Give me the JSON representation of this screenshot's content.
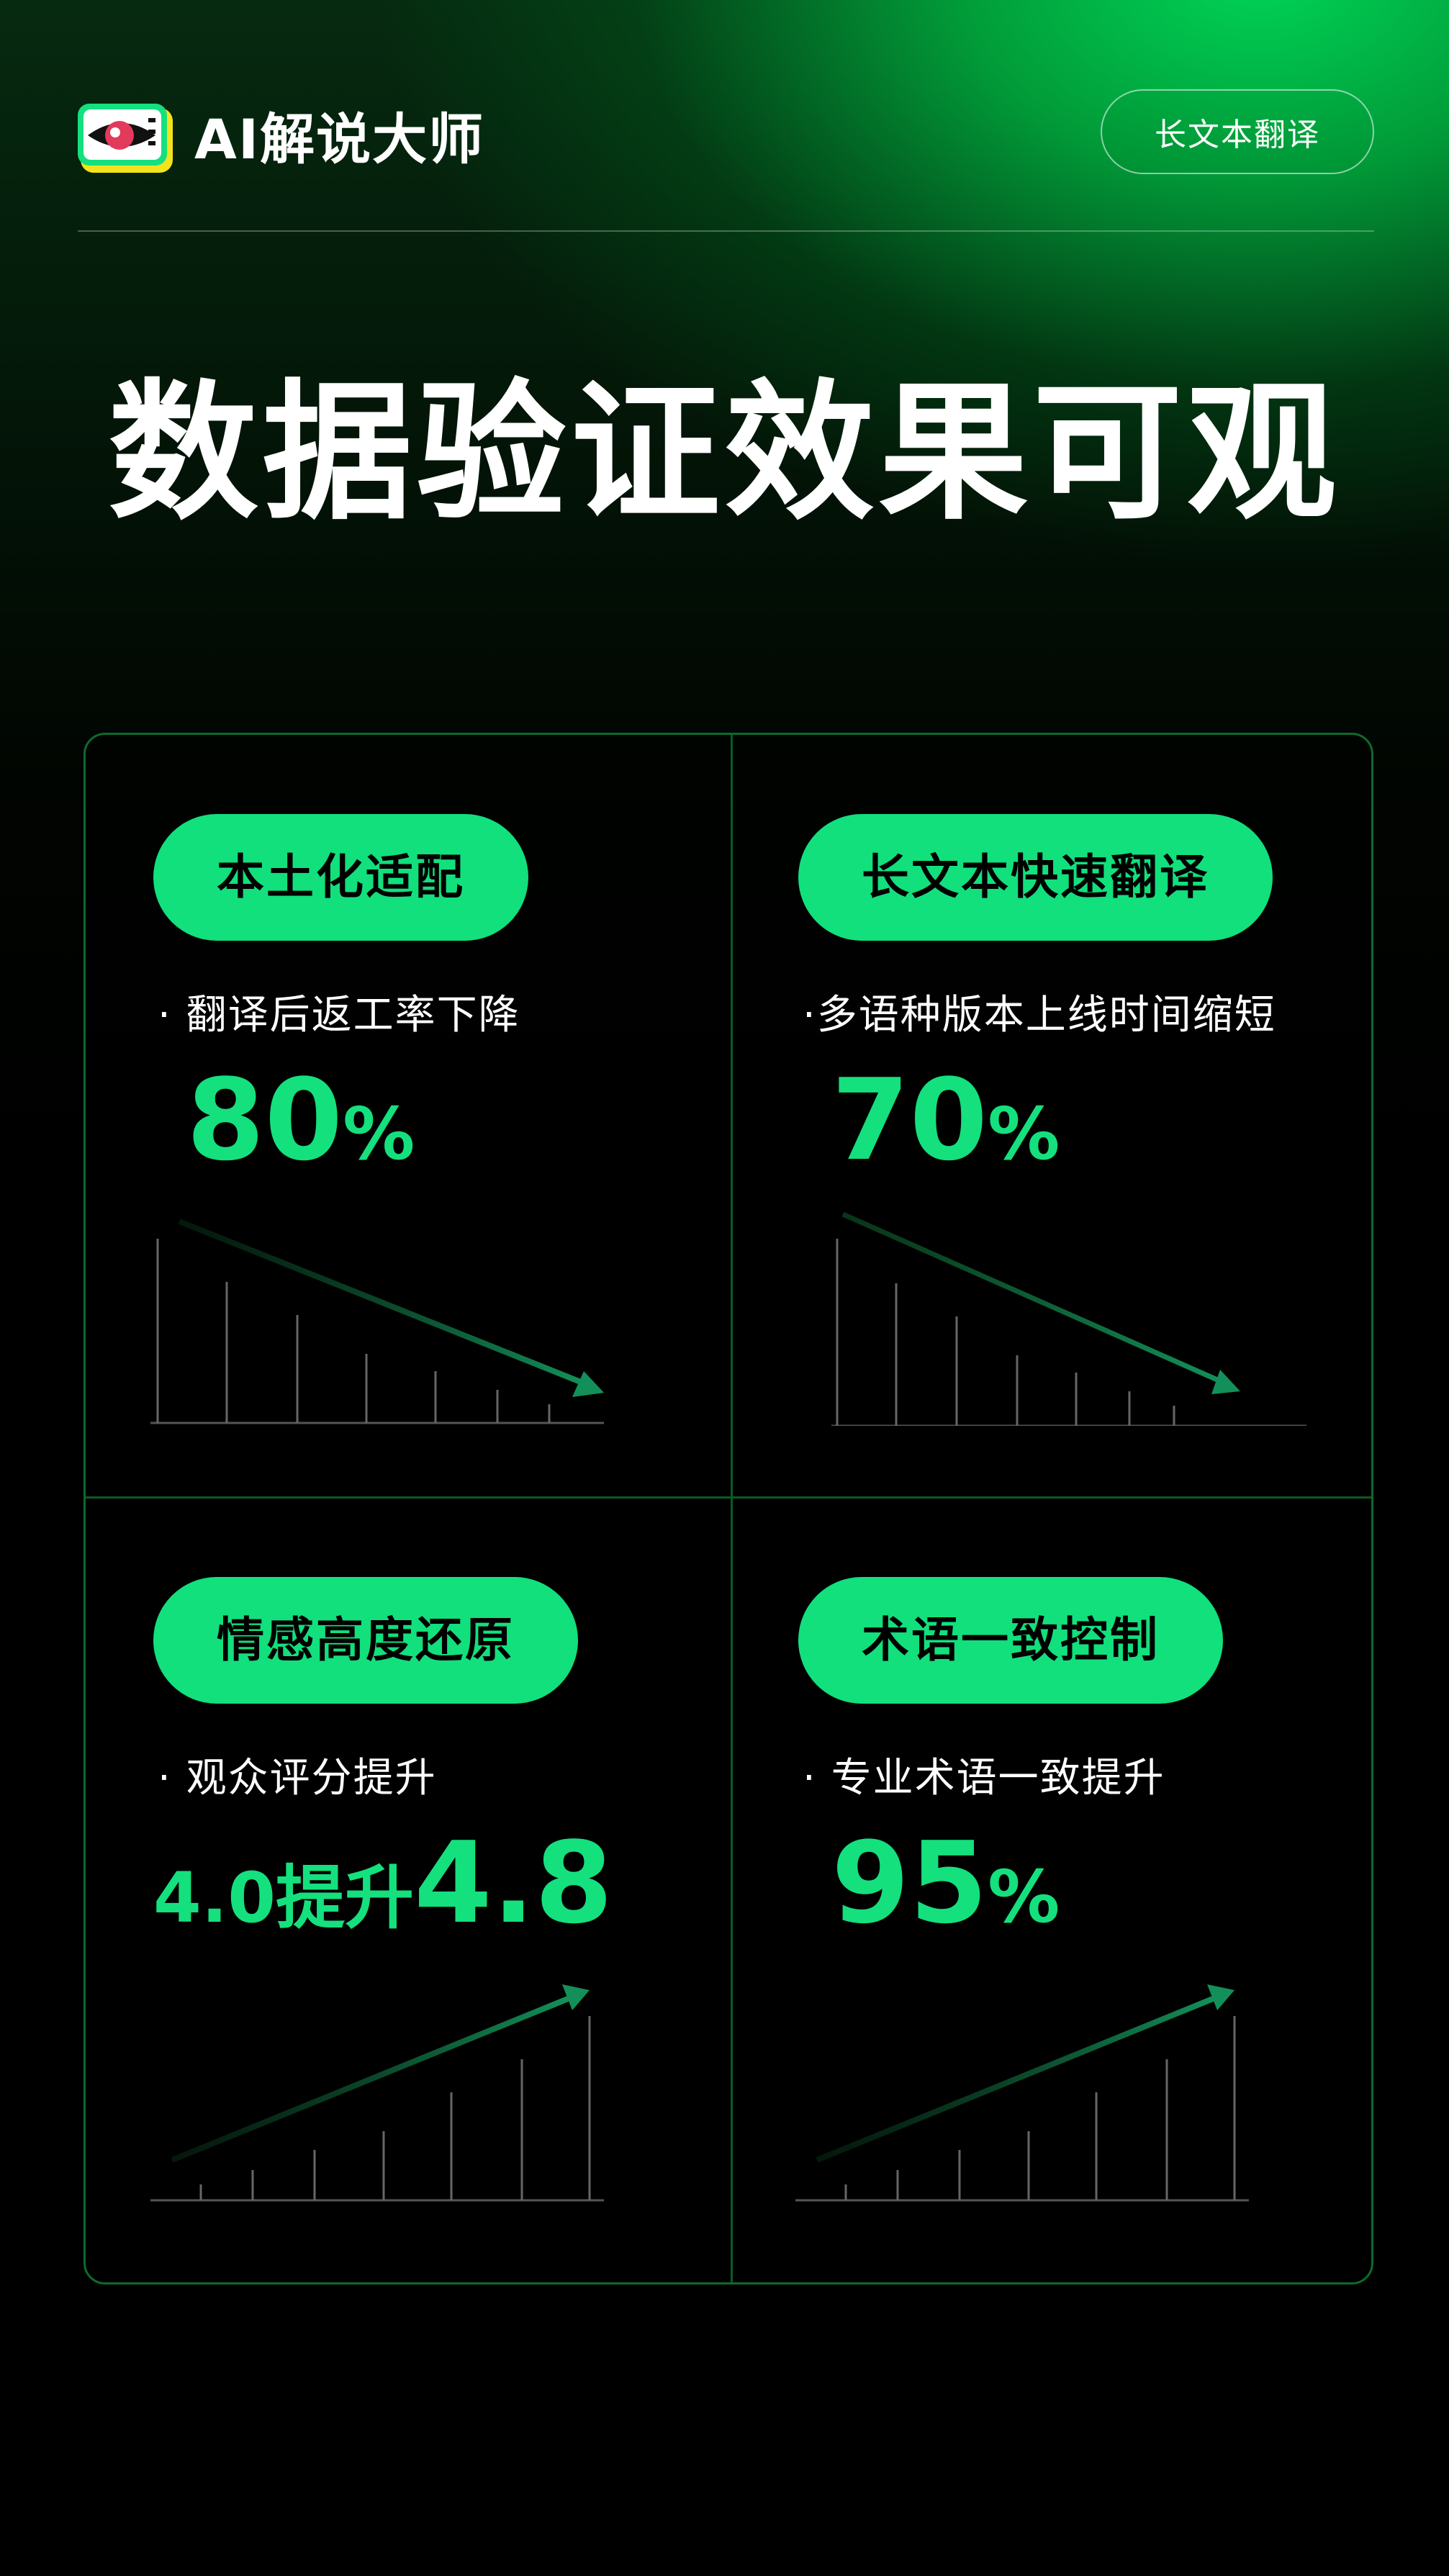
{
  "header": {
    "logo_text": "AI解说大师",
    "logo_icon": "clapperboard-eye-icon",
    "top_button": "长文本翻译"
  },
  "title": "数据验证效果可观",
  "colors": {
    "accent": "#11e07d",
    "border": "#0d6a2c",
    "background": "#000000"
  },
  "cards": [
    {
      "label": "本土化适配",
      "desc": "· 翻译后返工率下降",
      "value": "80",
      "unit": "%",
      "trend": "down"
    },
    {
      "label": "长文本快速翻译",
      "desc": "·多语种版本上线时间缩短",
      "value": "70",
      "unit": "%",
      "trend": "down"
    },
    {
      "label": "情感高度还原",
      "desc": "· 观众评分提升",
      "value_prefix": "4.0提升",
      "value": "4.8",
      "trend": "up"
    },
    {
      "label": "术语一致控制",
      "desc": "· 专业术语一致提升",
      "value": "95",
      "unit": "%",
      "trend": "up"
    }
  ]
}
